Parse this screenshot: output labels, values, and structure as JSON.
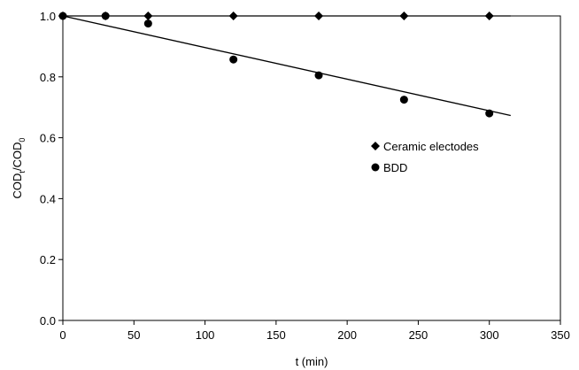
{
  "chart_data": {
    "type": "scatter",
    "title": "",
    "xlabel": "t (min)",
    "ylabel": {
      "main": "COD",
      "sub1": "t",
      "sep": "/COD",
      "sub2": "0"
    },
    "xlim": [
      0,
      350
    ],
    "ylim": [
      0,
      1.0
    ],
    "xticks": [
      0,
      50,
      100,
      150,
      200,
      250,
      300,
      350
    ],
    "yticks": [
      "0.0",
      "0.2",
      "0.4",
      "0.6",
      "0.8",
      "1.0"
    ],
    "grid": false,
    "legend_position": "right-center",
    "series": [
      {
        "name": "Ceramic electodes",
        "marker": "diamond",
        "color": "#000000",
        "x": [
          0,
          30,
          60,
          120,
          180,
          240,
          300
        ],
        "y": [
          1.0,
          1.0,
          1.0,
          1.0,
          1.0,
          1.0,
          1.0
        ],
        "trendline": [
          [
            0,
            1.0
          ],
          [
            315,
            1.0
          ]
        ]
      },
      {
        "name": "BDD",
        "marker": "circle",
        "color": "#000000",
        "x": [
          0,
          30,
          60,
          120,
          180,
          240,
          300
        ],
        "y": [
          1.0,
          1.0,
          0.975,
          0.857,
          0.805,
          0.725,
          0.68
        ],
        "trendline": [
          [
            0,
            1.0
          ],
          [
            315,
            0.673
          ]
        ]
      }
    ]
  }
}
